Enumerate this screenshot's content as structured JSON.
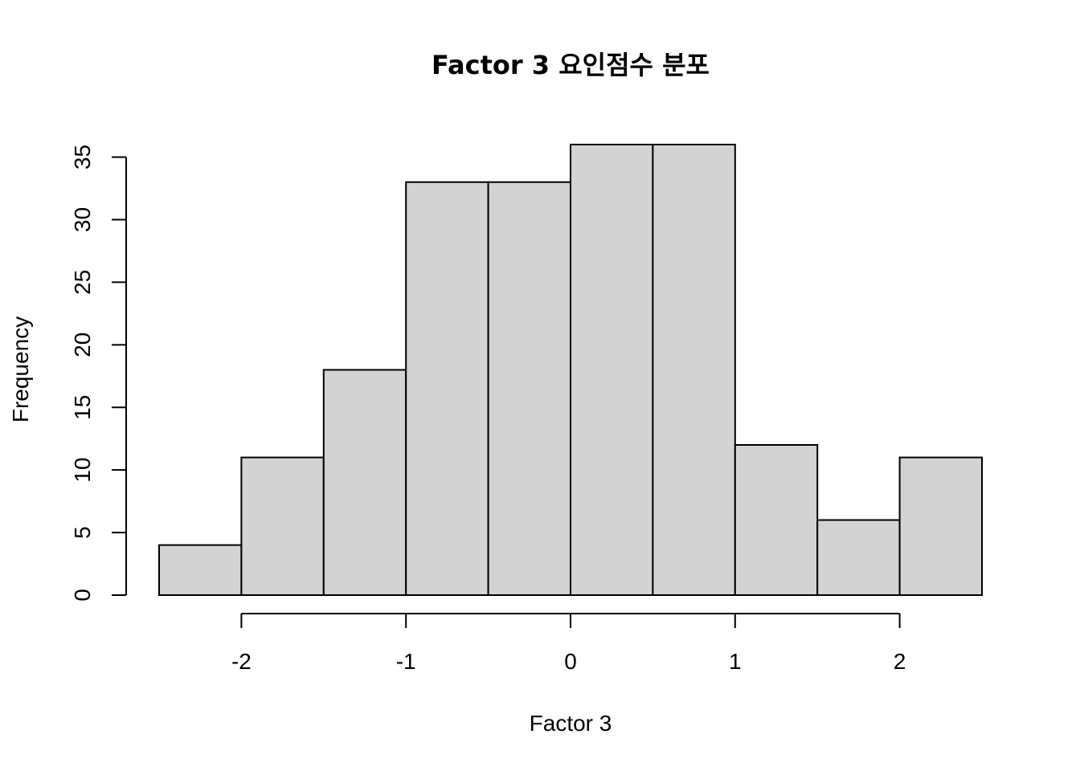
{
  "chart_data": {
    "type": "bar",
    "title": "Factor 3 요인점수 분포",
    "xlabel": "Factor 3",
    "ylabel": "Frequency",
    "bins": [
      {
        "start": -2.5,
        "end": -2.0,
        "count": 4
      },
      {
        "start": -2.0,
        "end": -1.5,
        "count": 11
      },
      {
        "start": -1.5,
        "end": -1.0,
        "count": 18
      },
      {
        "start": -1.0,
        "end": -0.5,
        "count": 33
      },
      {
        "start": -0.5,
        "end": 0.0,
        "count": 33
      },
      {
        "start": 0.0,
        "end": 0.5,
        "count": 36
      },
      {
        "start": 0.5,
        "end": 1.0,
        "count": 36
      },
      {
        "start": 1.0,
        "end": 1.5,
        "count": 12
      },
      {
        "start": 1.5,
        "end": 2.0,
        "count": 6
      },
      {
        "start": 2.0,
        "end": 2.5,
        "count": 11
      }
    ],
    "x_ticks": [
      -2,
      -1,
      0,
      1,
      2
    ],
    "y_ticks": [
      0,
      5,
      10,
      15,
      20,
      25,
      30,
      35
    ],
    "xlim": [
      -2.5,
      2.5
    ],
    "ylim": [
      0,
      36
    ],
    "grid": false,
    "bar_color": "#d3d3d3",
    "edge_color": "#000000"
  }
}
